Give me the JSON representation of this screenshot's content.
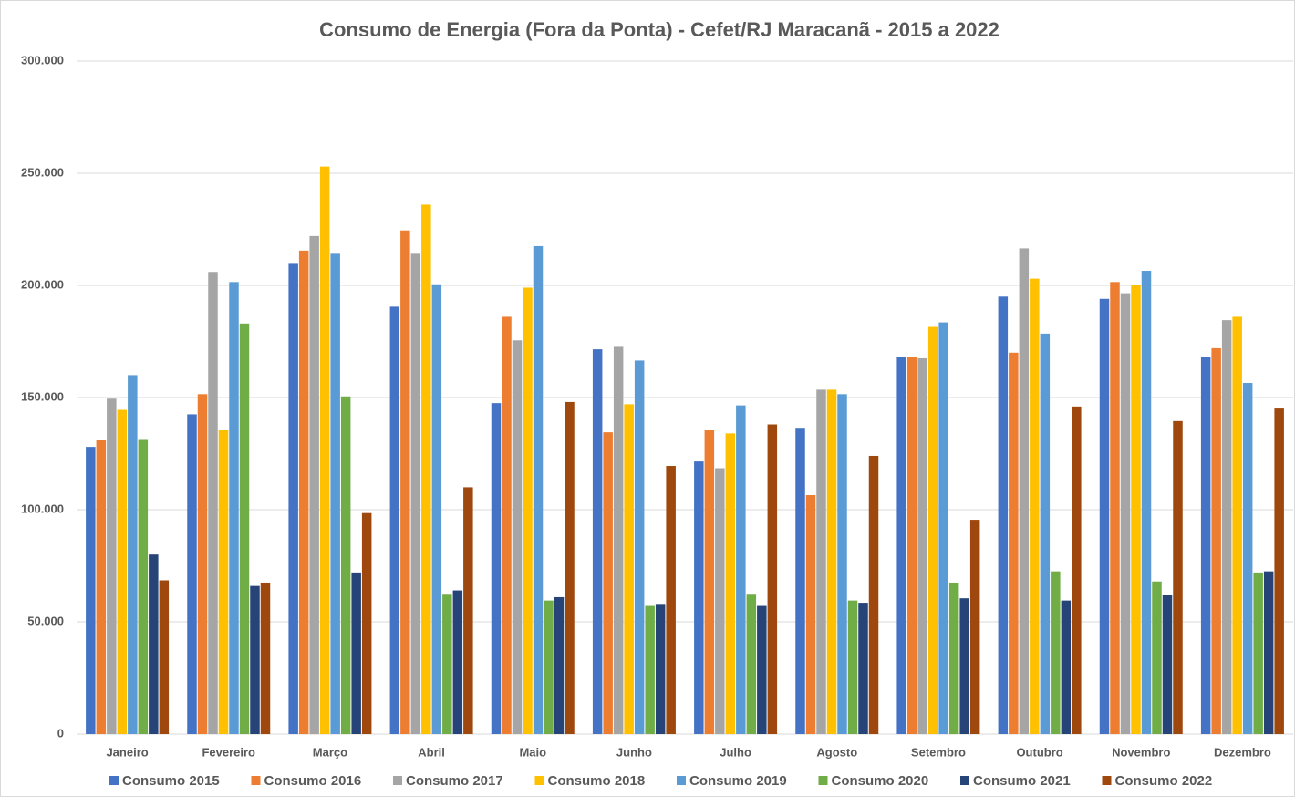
{
  "chart_data": {
    "type": "bar",
    "title": "Consumo de Energia (Fora da Ponta) - Cefet/RJ Maracanã - 2015 a 2022",
    "categories": [
      "Janeiro",
      "Fevereiro",
      "Março",
      "Abril",
      "Maio",
      "Junho",
      "Julho",
      "Agosto",
      "Setembro",
      "Outubro",
      "Novembro",
      "Dezembro"
    ],
    "series": [
      {
        "name": "Consumo 2015",
        "color": "#4472c4",
        "values": [
          128000,
          142500,
          210000,
          190500,
          147500,
          171500,
          121500,
          136500,
          168000,
          195000,
          194000,
          168000
        ]
      },
      {
        "name": "Consumo 2016",
        "color": "#ed7d31",
        "values": [
          131000,
          151500,
          215500,
          224500,
          186000,
          134500,
          135500,
          106500,
          168000,
          170000,
          201500,
          172000
        ]
      },
      {
        "name": "Consumo 2017",
        "color": "#a5a5a5",
        "values": [
          149500,
          206000,
          222000,
          214500,
          175500,
          173000,
          118500,
          153500,
          167500,
          216500,
          196500,
          184500
        ]
      },
      {
        "name": "Consumo 2018",
        "color": "#ffc000",
        "values": [
          144500,
          135500,
          253000,
          236000,
          199000,
          147000,
          134000,
          153500,
          181500,
          203000,
          200000,
          186000
        ]
      },
      {
        "name": "Consumo 2019",
        "color": "#5b9bd5",
        "values": [
          160000,
          201500,
          214500,
          200500,
          217500,
          166500,
          146500,
          151500,
          183500,
          178500,
          206500,
          156500
        ]
      },
      {
        "name": "Consumo 2020",
        "color": "#70ad47",
        "values": [
          131500,
          183000,
          150500,
          62500,
          59500,
          57500,
          62500,
          59500,
          67500,
          72500,
          68000,
          72000
        ]
      },
      {
        "name": "Consumo 2021",
        "color": "#264478",
        "values": [
          80000,
          66000,
          72000,
          64000,
          61000,
          58000,
          57500,
          58500,
          60500,
          59500,
          62000,
          72500
        ]
      },
      {
        "name": "Consumo 2022",
        "color": "#9e480e",
        "values": [
          68500,
          67500,
          98500,
          110000,
          148000,
          119500,
          138000,
          124000,
          95500,
          146000,
          139500,
          145500
        ]
      }
    ],
    "ylim": [
      0,
      300000
    ],
    "yticks": [
      0,
      {
        "value": 50000,
        "label": "50.000"
      },
      {
        "value": 100000,
        "label": "100.000"
      },
      {
        "value": 150000,
        "label": "150.000"
      },
      {
        "value": 200000,
        "label": "200.000"
      },
      {
        "value": 250000,
        "label": "250.000"
      },
      {
        "value": 300000,
        "label": "300.000"
      }
    ],
    "grid": true,
    "legend": "bottom"
  }
}
